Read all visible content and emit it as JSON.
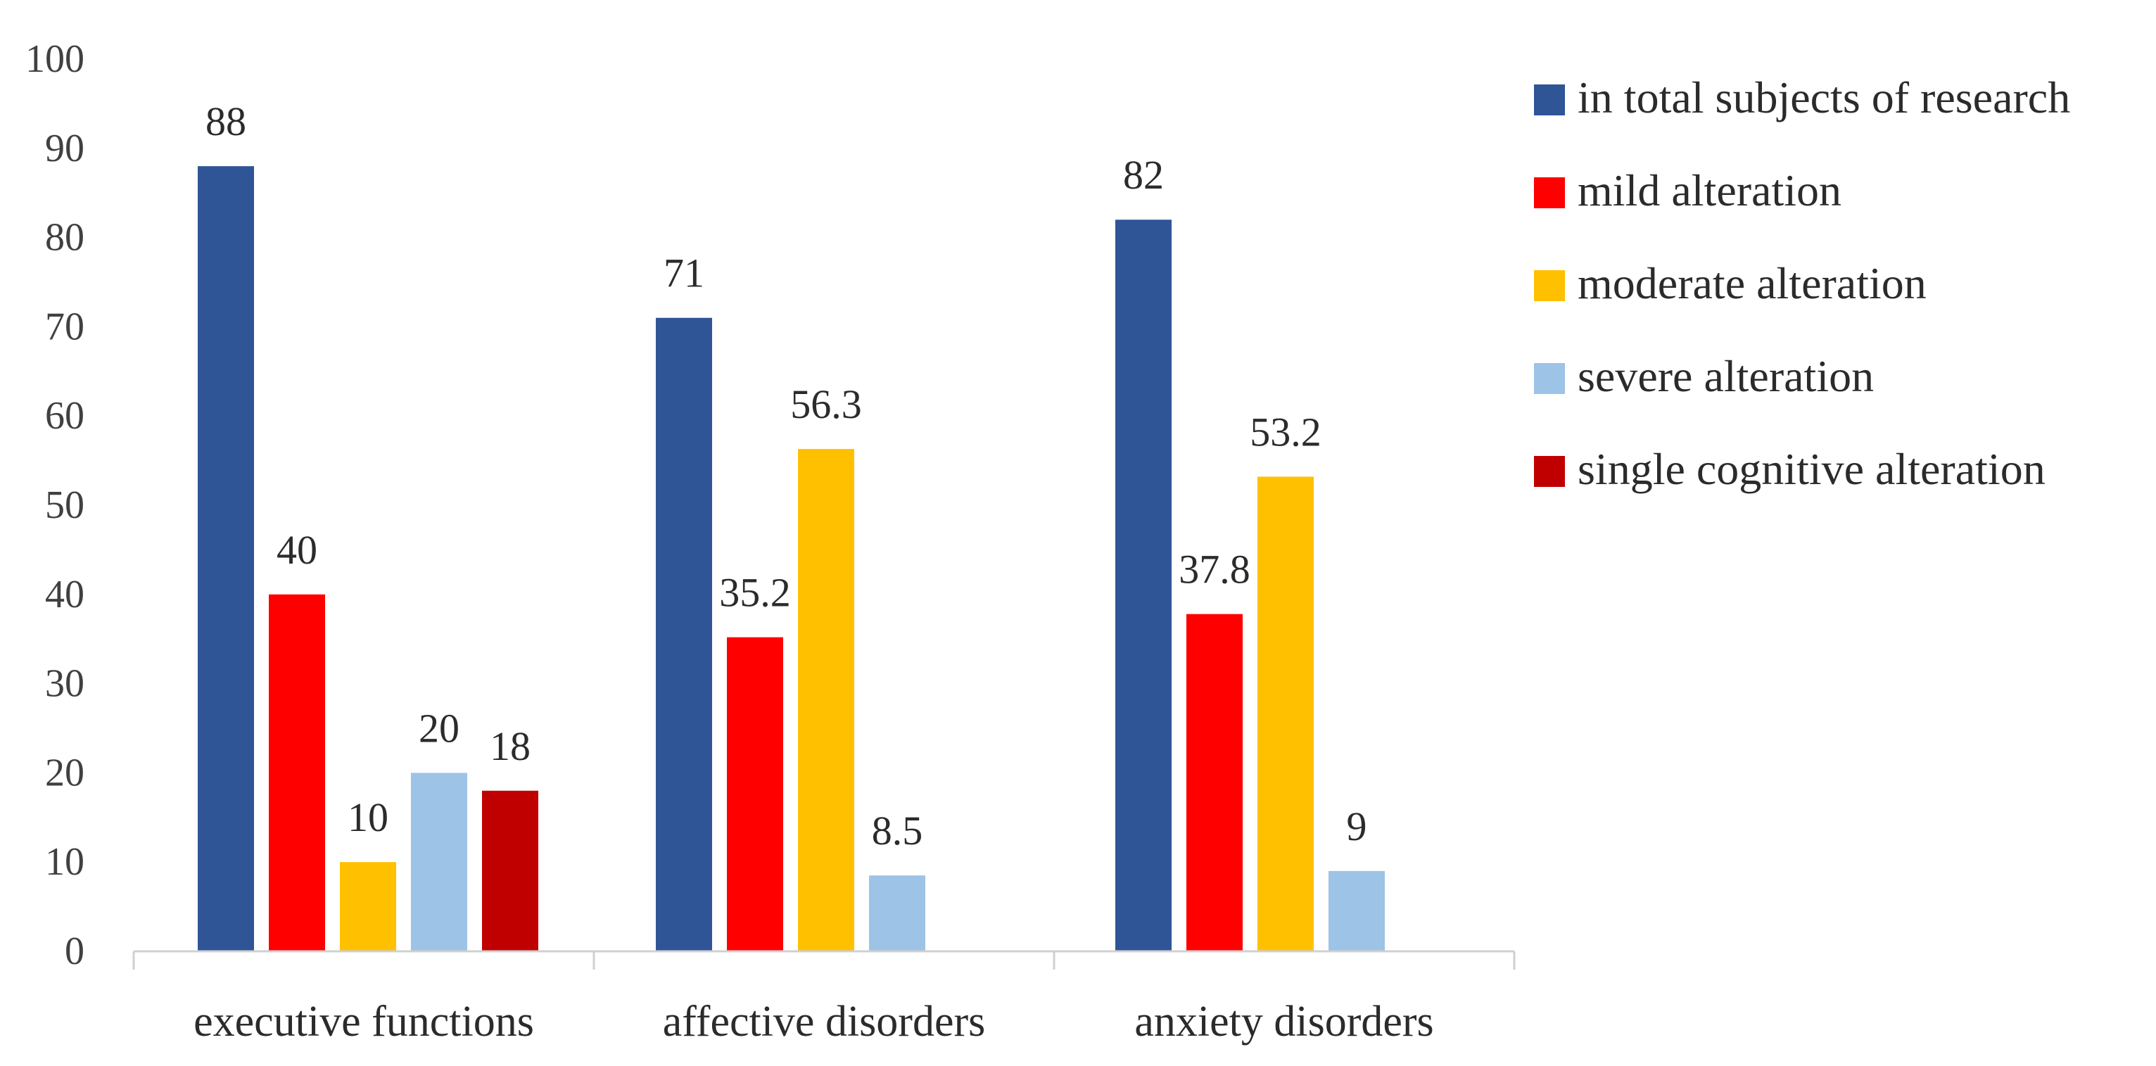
{
  "chart_data": {
    "type": "bar",
    "title": "",
    "xlabel": "",
    "ylabel": "",
    "ylim": [
      0,
      100
    ],
    "yticks": [
      0,
      10,
      20,
      30,
      40,
      50,
      60,
      70,
      80,
      90,
      100
    ],
    "grid": false,
    "legend_position": "right",
    "categories": [
      "executive functions",
      "affective disorders",
      "anxiety disorders"
    ],
    "series": [
      {
        "name": "in total subjects of research",
        "color": "#2F5597",
        "values": [
          88,
          71,
          82
        ],
        "labels": [
          "88",
          "71",
          "82"
        ]
      },
      {
        "name": "mild alteration",
        "color": "#FF0000",
        "values": [
          40,
          35.2,
          37.8
        ],
        "labels": [
          "40",
          "35.2",
          "37.8"
        ]
      },
      {
        "name": "moderate alteration",
        "color": "#FFC000",
        "values": [
          10,
          56.3,
          53.2
        ],
        "labels": [
          "10",
          "56.3",
          "53.2"
        ]
      },
      {
        "name": "severe alteration",
        "color": "#9DC3E6",
        "values": [
          20,
          8.5,
          9
        ],
        "labels": [
          "20",
          "8.5",
          "9"
        ]
      },
      {
        "name": "single cognitive alteration",
        "color": "#C00000",
        "values": [
          18,
          null,
          null
        ],
        "labels": [
          "18",
          null,
          null
        ]
      }
    ]
  }
}
